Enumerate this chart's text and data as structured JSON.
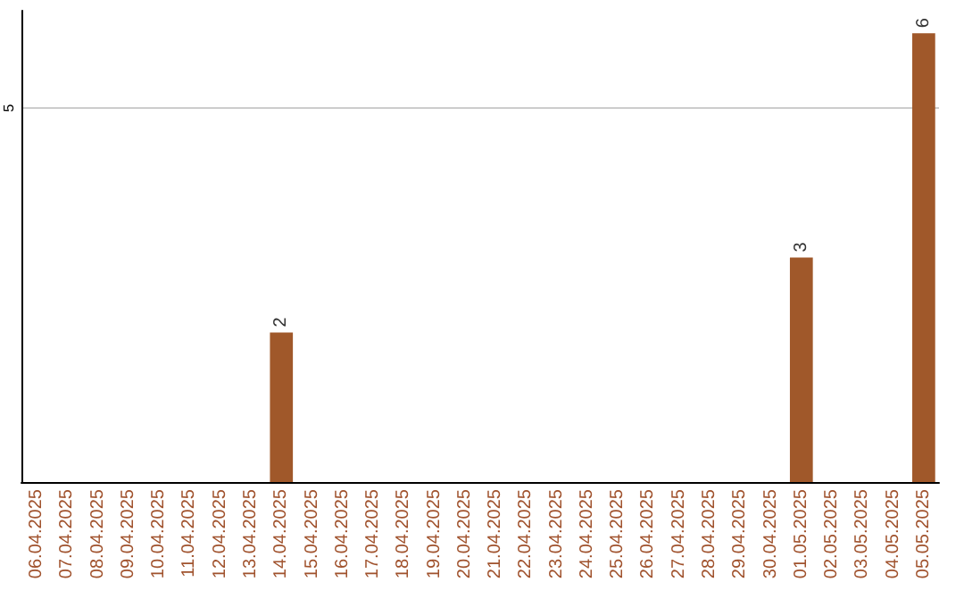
{
  "chart_data": {
    "type": "bar",
    "categories": [
      "06.04.2025",
      "07.04.2025",
      "08.04.2025",
      "09.04.2025",
      "10.04.2025",
      "11.04.2025",
      "12.04.2025",
      "13.04.2025",
      "14.04.2025",
      "15.04.2025",
      "16.04.2025",
      "17.04.2025",
      "18.04.2025",
      "19.04.2025",
      "20.04.2025",
      "21.04.2025",
      "22.04.2025",
      "23.04.2025",
      "24.04.2025",
      "25.04.2025",
      "26.04.2025",
      "27.04.2025",
      "28.04.2025",
      "29.04.2025",
      "30.04.2025",
      "01.05.2025",
      "02.05.2025",
      "03.05.2025",
      "04.05.2025",
      "05.05.2025"
    ],
    "values": [
      0,
      0,
      0,
      0,
      0,
      0,
      0,
      0,
      2,
      0,
      0,
      0,
      0,
      0,
      0,
      0,
      0,
      0,
      0,
      0,
      0,
      0,
      0,
      0,
      0,
      3,
      0,
      0,
      0,
      6
    ],
    "value_labels": [
      null,
      null,
      null,
      null,
      null,
      null,
      null,
      null,
      "2",
      null,
      null,
      null,
      null,
      null,
      null,
      null,
      null,
      null,
      null,
      null,
      null,
      null,
      null,
      null,
      null,
      "3",
      null,
      null,
      null,
      "6"
    ],
    "color": "#a0582a",
    "ylim": [
      0,
      6.3
    ],
    "yticks": [
      5
    ],
    "grid": "y"
  }
}
